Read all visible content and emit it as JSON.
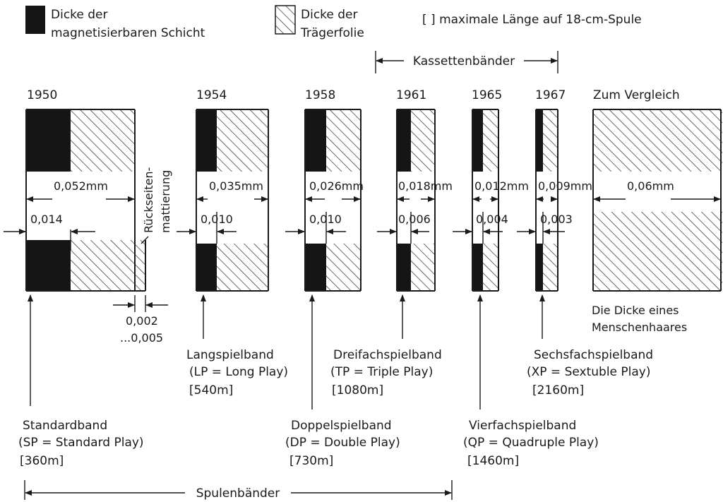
{
  "legend": {
    "magnetic_label_1": "Dicke der",
    "magnetic_label_2": "magnetisierbaren Schicht",
    "carrier_label_1": "Dicke der",
    "carrier_label_2": "Trägerfolie",
    "brackets_label": "[   ] maximale Länge auf 18-cm-Spule"
  },
  "cassette_range_label": "Kassettenbänder",
  "reel_range_label": "Spulenbänder",
  "backcoating_label_1": "Rückseiten-",
  "backcoating_label_2": "mattierung",
  "backcoating_thickness_1": "0,002",
  "backcoating_thickness_2": "...0,005",
  "tapes": [
    {
      "year": "1950",
      "total": "0,052mm",
      "magnetic": "0,014",
      "name": "Standardband",
      "abbr": "(SP = Standard Play)",
      "length": "[360m]"
    },
    {
      "year": "1954",
      "total": "0,035mm",
      "magnetic": "0,010",
      "name": "Langspielband",
      "abbr": "(LP = Long Play)",
      "length": "[540m]"
    },
    {
      "year": "1958",
      "total": "0,026mm",
      "magnetic": "0,010",
      "name": "Doppelspielband",
      "abbr": "(DP = Double Play)",
      "length": "[730m]"
    },
    {
      "year": "1961",
      "total": "0,018mm",
      "magnetic": "0,006",
      "name": "Dreifachspielband",
      "abbr": "(TP = Triple Play)",
      "length": "[1080m]"
    },
    {
      "year": "1965",
      "total": "0,012mm",
      "magnetic": "0,004",
      "name": "Vierfachspielband",
      "abbr": "(QP = Quadruple Play)",
      "length": "[1460m]"
    },
    {
      "year": "1967",
      "total": "0,009mm",
      "magnetic": "0,003",
      "name": "Sechsfachspielband",
      "abbr": "(XP = Sextuble Play)",
      "length": "[2160m]"
    }
  ],
  "comparison": {
    "title": "Zum Vergleich",
    "value": "0,06mm",
    "caption_1": "Die Dicke eines",
    "caption_2": "Menschenhaares"
  }
}
